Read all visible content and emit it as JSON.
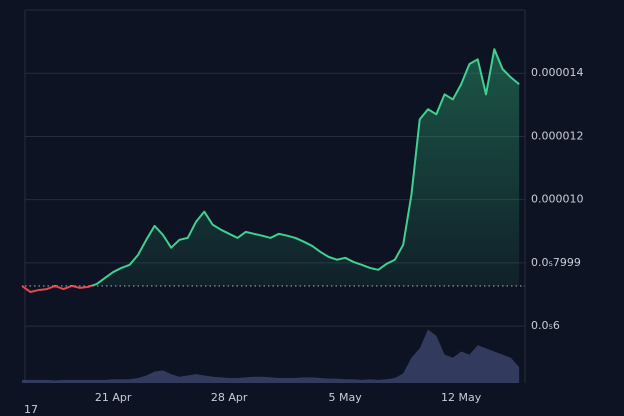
{
  "chart_data": {
    "type": "line",
    "categories": [
      null,
      null,
      null,
      null,
      null,
      null,
      null,
      null,
      null,
      null,
      null,
      "21 Apr",
      null,
      null,
      null,
      null,
      null,
      null,
      null,
      null,
      null,
      null,
      null,
      null,
      null,
      "28 Apr",
      null,
      null,
      null,
      null,
      null,
      null,
      null,
      null,
      null,
      null,
      null,
      null,
      null,
      "5 May",
      null,
      null,
      null,
      null,
      null,
      null,
      null,
      null,
      null,
      null,
      null,
      null,
      null,
      "12 May",
      null,
      null,
      null,
      null,
      null,
      null,
      null
    ],
    "series": [
      {
        "color": "#40d08f",
        "down_color": "#e5484d",
        "values": [
          7.27e-06,
          7.08e-06,
          7.14e-06,
          7.17e-06,
          7.27e-06,
          7.17e-06,
          7.27e-06,
          7.21e-06,
          7.24e-06,
          7.33e-06,
          7.52e-06,
          7.71e-06,
          7.84e-06,
          7.94e-06,
          8.25e-06,
          8.73e-06,
          9.17e-06,
          8.89e-06,
          8.48e-06,
          8.73e-06,
          8.79e-06,
          9.3e-06,
          9.62e-06,
          9.21e-06,
          9.05e-06,
          8.92e-06,
          8.79e-06,
          8.98e-06,
          8.92e-06,
          8.86e-06,
          8.79e-06,
          8.92e-06,
          8.86e-06,
          8.79e-06,
          8.67e-06,
          8.54e-06,
          8.35e-06,
          8.19e-06,
          8.1e-06,
          8.16e-06,
          8.03e-06,
          7.94e-06,
          7.84e-06,
          7.78e-06,
          7.97e-06,
          8.1e-06,
          8.57e-06,
          1.016e-05,
          1.254e-05,
          1.286e-05,
          1.27e-05,
          1.333e-05,
          1.317e-05,
          1.365e-05,
          1.429e-05,
          1.444e-05,
          1.333e-05,
          1.476e-05,
          1.413e-05,
          1.387e-05,
          1.365e-05
        ]
      },
      {
        "color": "#3a4368",
        "axis": "y2",
        "values": [
          5,
          5,
          5,
          5,
          4,
          5,
          5,
          5,
          5,
          5,
          5,
          6,
          6,
          6,
          8,
          12,
          18,
          20,
          14,
          10,
          12,
          14,
          12,
          10,
          9,
          8,
          8,
          9,
          10,
          10,
          9,
          8,
          8,
          8,
          9,
          9,
          8,
          7,
          7,
          6,
          6,
          5,
          6,
          5,
          6,
          8,
          15,
          40,
          55,
          85,
          75,
          45,
          40,
          50,
          45,
          60,
          55,
          50,
          45,
          40,
          25
        ]
      }
    ],
    "ylim": [
      4.2e-06,
      1.6e-05
    ],
    "yticks": [
      {
        "value": 1.4e-05,
        "label": "0.000014"
      },
      {
        "value": 1.2e-05,
        "label": "0.000012"
      },
      {
        "value": 1e-05,
        "label": "0.000010"
      },
      {
        "value": 7.999e-06,
        "label": "0.0₅7999"
      },
      {
        "value": 6e-06,
        "label": "0.0₅6"
      }
    ],
    "y2lim": [
      0,
      100
    ],
    "grid": true,
    "corner_label": "17"
  }
}
